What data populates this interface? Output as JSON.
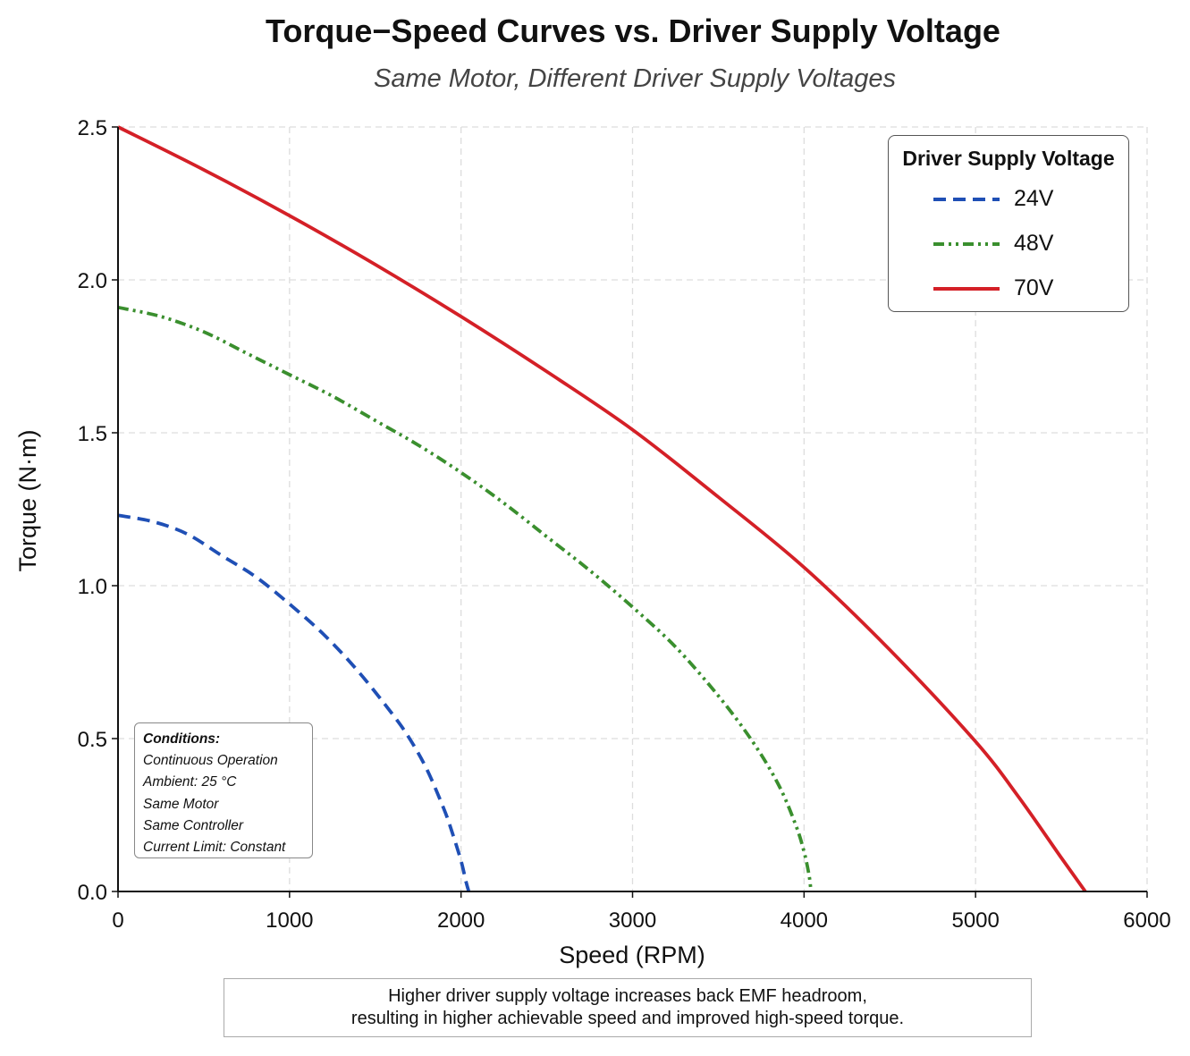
{
  "chart_data": {
    "type": "line",
    "title": "Torque−Speed Curves vs. Driver Supply Voltage",
    "subtitle": "Same Motor, Different Driver Supply Voltages",
    "xlabel": "Speed (RPM)",
    "ylabel": "Torque (N·m)",
    "xlim": [
      0,
      6000
    ],
    "ylim": [
      0,
      2.5
    ],
    "xticks": [
      "0",
      "1000",
      "2000",
      "3000",
      "4000",
      "5000",
      "6000"
    ],
    "yticks": [
      "0.0",
      "0.5",
      "1.0",
      "1.5",
      "2.0",
      "2.5"
    ],
    "grid": true,
    "legend": {
      "title": "Driver Supply Voltage",
      "position": "top-right"
    },
    "series": [
      {
        "name": "24V",
        "color": "#1f4fb5",
        "style": "dashed",
        "x": [
          0,
          200,
          400,
          600,
          800,
          1000,
          1200,
          1400,
          1600,
          1700,
          1800,
          1900,
          1950,
          2000,
          2030,
          2045
        ],
        "y": [
          1.23,
          1.21,
          1.17,
          1.1,
          1.03,
          0.94,
          0.84,
          0.72,
          0.58,
          0.5,
          0.4,
          0.27,
          0.19,
          0.1,
          0.03,
          0.0
        ]
      },
      {
        "name": "48V",
        "color": "#3a8f2e",
        "style": "dashdotdot",
        "x": [
          0,
          250,
          500,
          750,
          1000,
          1250,
          1500,
          1750,
          2000,
          2250,
          2500,
          2750,
          3000,
          3250,
          3500,
          3700,
          3850,
          3950,
          4000,
          4030,
          4040
        ],
        "y": [
          1.91,
          1.88,
          1.83,
          1.76,
          1.69,
          1.62,
          1.54,
          1.46,
          1.37,
          1.27,
          1.16,
          1.05,
          0.93,
          0.8,
          0.64,
          0.49,
          0.35,
          0.22,
          0.13,
          0.05,
          0.0
        ]
      },
      {
        "name": "70V",
        "color": "#d42027",
        "style": "solid",
        "x": [
          0,
          500,
          1000,
          1500,
          2000,
          2500,
          3000,
          3500,
          4000,
          4500,
          5000,
          5250,
          5500,
          5640
        ],
        "y": [
          2.5,
          2.36,
          2.21,
          2.05,
          1.88,
          1.7,
          1.51,
          1.29,
          1.06,
          0.79,
          0.49,
          0.31,
          0.11,
          0.0
        ]
      }
    ]
  },
  "conditions": {
    "title": "Conditions:",
    "lines": [
      "Continuous Operation",
      "Ambient: 25 °C",
      "Same Motor",
      "Same Controller",
      "Current Limit: Constant"
    ]
  },
  "note": {
    "line1": "Higher driver supply voltage increases back EMF headroom,",
    "line2": "resulting in higher achievable speed and improved high-speed torque."
  }
}
